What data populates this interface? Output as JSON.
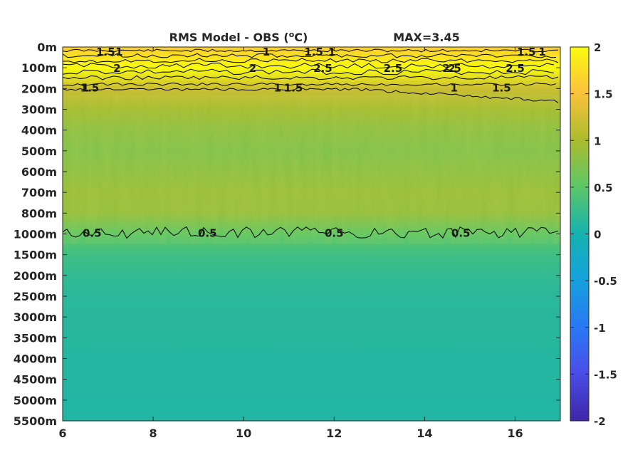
{
  "chart_data": {
    "type": "heatmap",
    "title": "RMS Model - OBS (",
    "title_superscript": "o",
    "title_suffix": "C)",
    "max_label": "MAX=3.45",
    "x_ticks": [
      6,
      8,
      10,
      12,
      14,
      16
    ],
    "xlim": [
      6,
      17
    ],
    "y_tick_labels": [
      "0m",
      "100m",
      "200m",
      "300m",
      "400m",
      "500m",
      "600m",
      "700m",
      "800m",
      "1000m",
      "1500m",
      "2000m",
      "2500m",
      "3000m",
      "3500m",
      "4000m",
      "4500m",
      "5000m",
      "5500m"
    ],
    "colorbar": {
      "ticks": [
        "2",
        "1.5",
        "1",
        "0.5",
        "0",
        "-0.5",
        "-1",
        "-1.5",
        "-2"
      ],
      "range": [
        -2,
        2
      ],
      "colormap": "parula"
    },
    "depth_profile": [
      {
        "depth": "0m",
        "value": 1.6
      },
      {
        "depth": "100m",
        "value": 2.1
      },
      {
        "depth": "200m",
        "value": 1.2
      },
      {
        "depth": "300m",
        "value": 0.95
      },
      {
        "depth": "400m",
        "value": 0.8
      },
      {
        "depth": "500m",
        "value": 0.72
      },
      {
        "depth": "600m",
        "value": 0.8
      },
      {
        "depth": "700m",
        "value": 0.88
      },
      {
        "depth": "800m",
        "value": 0.85
      },
      {
        "depth": "1000m",
        "value": 0.5
      },
      {
        "depth": "1500m",
        "value": 0.3
      },
      {
        "depth": "2000m",
        "value": 0.2
      },
      {
        "depth": "2500m",
        "value": 0.15
      },
      {
        "depth": "3000m",
        "value": 0.13
      },
      {
        "depth": "3500m",
        "value": 0.12
      },
      {
        "depth": "4000m",
        "value": 0.1
      },
      {
        "depth": "4500m",
        "value": 0.1
      },
      {
        "depth": "5000m",
        "value": 0.08
      },
      {
        "depth": "5500m",
        "value": 0.08
      }
    ],
    "contour_labels": [
      {
        "text": "1",
        "x": 7.25,
        "depth": "0m"
      },
      {
        "text": "1.5",
        "x": 6.95,
        "depth": "0m"
      },
      {
        "text": "2",
        "x": 7.2,
        "depth": "100m"
      },
      {
        "text": "1.5",
        "x": 6.6,
        "depth": "200m"
      },
      {
        "text": "1",
        "x": 6.5,
        "depth": "200m"
      },
      {
        "text": "1",
        "x": 10.5,
        "depth": "0m"
      },
      {
        "text": "2",
        "x": 10.2,
        "depth": "100m"
      },
      {
        "text": "1.5",
        "x": 11.1,
        "depth": "200m"
      },
      {
        "text": "1",
        "x": 10.75,
        "depth": "200m"
      },
      {
        "text": "1.5",
        "x": 11.55,
        "depth": "0m"
      },
      {
        "text": "1",
        "x": 11.95,
        "depth": "0m"
      },
      {
        "text": "2.5",
        "x": 11.75,
        "depth": "100m"
      },
      {
        "text": "2.5",
        "x": 13.3,
        "depth": "100m"
      },
      {
        "text": "2.5",
        "x": 14.6,
        "depth": "100m"
      },
      {
        "text": "2",
        "x": 14.6,
        "depth": "100m"
      },
      {
        "text": "1",
        "x": 14.65,
        "depth": "200m"
      },
      {
        "text": "1.5",
        "x": 15.7,
        "depth": "200m"
      },
      {
        "text": "2.5",
        "x": 16.0,
        "depth": "100m"
      },
      {
        "text": "1.5",
        "x": 16.25,
        "depth": "0m"
      },
      {
        "text": "1",
        "x": 16.6,
        "depth": "0m"
      },
      {
        "text": "0.5",
        "x": 6.65,
        "depth": "1000m"
      },
      {
        "text": "0.5",
        "x": 9.2,
        "depth": "1000m"
      },
      {
        "text": "0.5",
        "x": 12.0,
        "depth": "1000m"
      },
      {
        "text": "0.5",
        "x": 14.8,
        "depth": "1000m"
      }
    ]
  }
}
